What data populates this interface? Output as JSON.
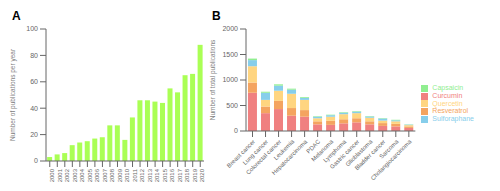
{
  "chart_data": [
    {
      "type": "bar",
      "title": "A",
      "categories": [
        "2000",
        "2001",
        "2002",
        "2003",
        "2004",
        "2005",
        "2006",
        "2007",
        "2008",
        "2009",
        "2010",
        "2011",
        "2012",
        "2013",
        "2014",
        "2015",
        "2016",
        "2017",
        "2018",
        "2019",
        "2020"
      ],
      "values": [
        3,
        5,
        6,
        12,
        14,
        15,
        17,
        18,
        27,
        27,
        16,
        33,
        46,
        46,
        45,
        44,
        55,
        52,
        65,
        66,
        88
      ],
      "color": "#aaff55",
      "ylabel": "Number of publications per year",
      "ylim": [
        0,
        100
      ],
      "yticks": [
        0,
        20,
        40,
        60,
        80,
        100
      ]
    },
    {
      "type": "bar",
      "title": "B",
      "stacked": true,
      "legend": "right",
      "categories": [
        "Breast cancer",
        "Lung cancer",
        "Colorectal cancer",
        "Leukemia",
        "Hepatocarcinoma",
        "PDAC",
        "Melanoma",
        "Lymphoma",
        "Gastric cancer",
        "Glioblastoma",
        "Bladder cancer",
        "Sarcoma",
        "Cholangiocarcinoma"
      ],
      "series": [
        {
          "name": "Curcumin",
          "color": "#f08080",
          "values": [
            750,
            350,
            430,
            300,
            280,
            130,
            120,
            150,
            170,
            130,
            100,
            90,
            60
          ]
        },
        {
          "name": "Resveratrol",
          "color": "#f4a460",
          "values": [
            200,
            130,
            160,
            150,
            130,
            60,
            80,
            80,
            80,
            60,
            55,
            50,
            30
          ]
        },
        {
          "name": "Quercetin",
          "color": "#ffd580",
          "values": [
            320,
            130,
            200,
            280,
            200,
            60,
            80,
            100,
            100,
            70,
            50,
            50,
            25
          ]
        },
        {
          "name": "Sulforaphane",
          "color": "#87ceeb",
          "values": [
            120,
            140,
            100,
            80,
            40,
            30,
            30,
            30,
            30,
            25,
            40,
            20,
            10
          ]
        },
        {
          "name": "Capsaicin",
          "color": "#90ee90",
          "values": [
            30,
            20,
            25,
            20,
            15,
            10,
            10,
            10,
            10,
            8,
            8,
            10,
            5
          ]
        }
      ],
      "ylabel": "Number of total publications",
      "ylim": [
        0,
        2000
      ],
      "yticks": [
        0,
        500,
        1000,
        1500,
        2000
      ]
    }
  ]
}
